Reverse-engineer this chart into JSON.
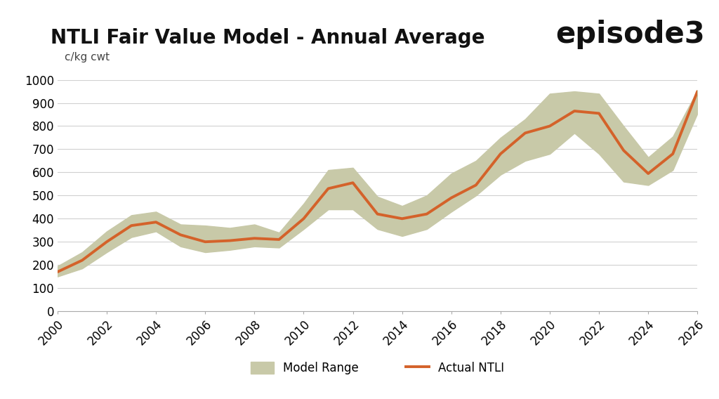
{
  "title": "NTLI Fair Value Model - Annual Average",
  "ylabel": "c/kg cwt",
  "logo_text": "episode3",
  "background_color": "#ffffff",
  "plot_bg_color": "#ffffff",
  "grid_color": "#d0d0d0",
  "years": [
    2000,
    2001,
    2002,
    2003,
    2004,
    2005,
    2006,
    2007,
    2008,
    2009,
    2010,
    2011,
    2012,
    2013,
    2014,
    2015,
    2016,
    2017,
    2018,
    2019,
    2020,
    2021,
    2022,
    2023,
    2024,
    2025,
    2026
  ],
  "actual_ntli": [
    170,
    220,
    300,
    370,
    385,
    330,
    300,
    305,
    315,
    310,
    400,
    530,
    555,
    420,
    400,
    420,
    490,
    545,
    680,
    770,
    800,
    865,
    855,
    695,
    595,
    680,
    950
  ],
  "model_low": [
    150,
    185,
    255,
    320,
    345,
    280,
    255,
    265,
    280,
    275,
    355,
    440,
    440,
    355,
    325,
    355,
    430,
    500,
    590,
    650,
    680,
    770,
    680,
    560,
    545,
    610,
    855
  ],
  "model_high": [
    195,
    255,
    345,
    415,
    430,
    375,
    370,
    360,
    375,
    340,
    465,
    610,
    620,
    495,
    455,
    500,
    595,
    650,
    750,
    830,
    940,
    950,
    940,
    800,
    665,
    755,
    955
  ],
  "line_color": "#d4622a",
  "fill_color": "#c8c9a8",
  "fill_alpha": 1.0,
  "line_width": 2.8,
  "ylim": [
    0,
    1000
  ],
  "yticks": [
    0,
    100,
    200,
    300,
    400,
    500,
    600,
    700,
    800,
    900,
    1000
  ],
  "xtick_step": 2,
  "legend_label_range": "Model Range",
  "legend_label_line": "Actual NTLI",
  "title_fontsize": 20,
  "tick_fontsize": 12,
  "ylabel_fontsize": 11
}
